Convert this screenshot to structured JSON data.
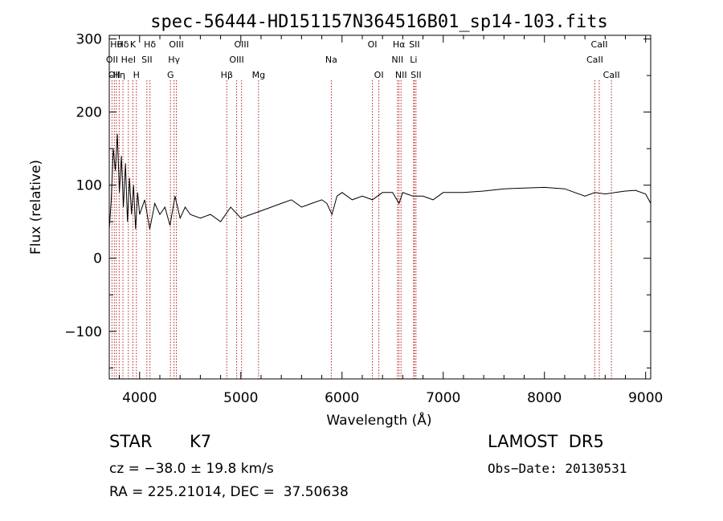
{
  "chart_data": {
    "type": "line",
    "title": "spec-56444-HD151157N364516B01_sp14-103.fits",
    "xlabel": "Wavelength (Å)",
    "ylabel": "Flux (relative)",
    "xlim": [
      3700,
      9050
    ],
    "ylim": [
      -165,
      305
    ],
    "xticks": [
      4000,
      5000,
      6000,
      7000,
      8000,
      9000
    ],
    "yticks": [
      -100,
      0,
      100,
      200,
      300
    ],
    "ytick_labels": [
      "−100",
      "0",
      "100",
      "200",
      "300"
    ],
    "grid": false,
    "series": [
      {
        "color": "#000000",
        "x": [
          3700,
          3720,
          3740,
          3760,
          3780,
          3800,
          3820,
          3840,
          3860,
          3880,
          3900,
          3920,
          3940,
          3960,
          3980,
          4000,
          4050,
          4100,
          4150,
          4200,
          4250,
          4300,
          4350,
          4400,
          4450,
          4500,
          4600,
          4700,
          4800,
          4900,
          5000,
          5100,
          5200,
          5300,
          5400,
          5500,
          5600,
          5700,
          5800,
          5850,
          5900,
          5950,
          6000,
          6100,
          6200,
          6300,
          6400,
          6500,
          6563,
          6600,
          6700,
          6800,
          6900,
          7000,
          7200,
          7400,
          7600,
          7800,
          8000,
          8200,
          8400,
          8500,
          8600,
          8700,
          8800,
          8900,
          9000,
          9050
        ],
        "y": [
          40,
          80,
          150,
          120,
          170,
          90,
          140,
          70,
          130,
          50,
          110,
          60,
          100,
          40,
          90,
          60,
          80,
          40,
          75,
          60,
          70,
          45,
          85,
          55,
          70,
          60,
          55,
          60,
          50,
          70,
          55,
          60,
          65,
          70,
          75,
          80,
          70,
          75,
          80,
          75,
          60,
          85,
          90,
          80,
          85,
          80,
          90,
          90,
          75,
          90,
          85,
          85,
          80,
          90,
          90,
          92,
          95,
          96,
          97,
          95,
          85,
          90,
          88,
          90,
          92,
          93,
          88,
          75
        ]
      }
    ],
    "lines": [
      {
        "x": 3727,
        "label": "OII",
        "row": 1
      },
      {
        "x": 3750,
        "label": "OII",
        "row": 2
      },
      {
        "x": 3770,
        "label": "Hθ",
        "row": 0
      },
      {
        "x": 3798,
        "label": "Hη",
        "row": 2
      },
      {
        "x": 3835,
        "label": "Hδ",
        "row": 0
      },
      {
        "x": 3889,
        "label": "HeI",
        "row": 1
      },
      {
        "x": 3934,
        "label": "K",
        "row": 0
      },
      {
        "x": 3968,
        "label": "H",
        "row": 2
      },
      {
        "x": 4072,
        "label": "SII",
        "row": 1
      },
      {
        "x": 4102,
        "label": "Hδ",
        "row": 0
      },
      {
        "x": 4305,
        "label": "G",
        "row": 2
      },
      {
        "x": 4340,
        "label": "Hγ",
        "row": 1
      },
      {
        "x": 4363,
        "label": "OIII",
        "row": 0
      },
      {
        "x": 4861,
        "label": "Hβ",
        "row": 2
      },
      {
        "x": 4959,
        "label": "OIII",
        "row": 1
      },
      {
        "x": 5007,
        "label": "OIII",
        "row": 0
      },
      {
        "x": 5175,
        "label": "Mg",
        "row": 2
      },
      {
        "x": 5894,
        "label": "Na",
        "row": 1
      },
      {
        "x": 6300,
        "label": "OI",
        "row": 0
      },
      {
        "x": 6364,
        "label": "OI",
        "row": 2
      },
      {
        "x": 6548,
        "label": "NII",
        "row": 1
      },
      {
        "x": 6563,
        "label": "Hα",
        "row": 0
      },
      {
        "x": 6583,
        "label": "NII",
        "row": 2
      },
      {
        "x": 6707,
        "label": "Li",
        "row": 1
      },
      {
        "x": 6716,
        "label": "SII",
        "row": 0
      },
      {
        "x": 6731,
        "label": "SII",
        "row": 2
      },
      {
        "x": 8498,
        "label": "CaII",
        "row": 1
      },
      {
        "x": 8542,
        "label": "CaII",
        "row": 0
      },
      {
        "x": 8662,
        "label": "CaII",
        "row": 2
      }
    ]
  },
  "info": {
    "object_class": "STAR",
    "subclass": "K7",
    "survey": "LAMOST  DR5",
    "cz": "cz = −38.0 ± 19.8 km/s",
    "obs_date": "Obs−Date: 20130531",
    "coords": "RA = 225.21014, DEC =  37.50638"
  }
}
